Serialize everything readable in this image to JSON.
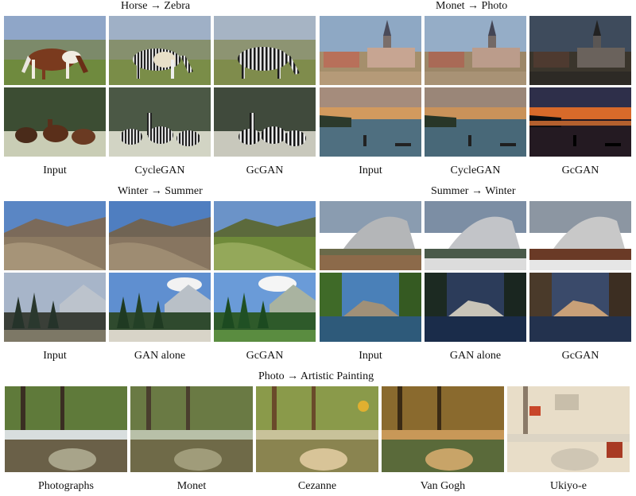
{
  "sections": {
    "horse_zebra": {
      "title": "Horse → Zebra",
      "captions": [
        "Input",
        "CycleGAN",
        "GcGAN"
      ]
    },
    "monet_photo": {
      "title": "Monet → Photo",
      "captions": [
        "Input",
        "CycleGAN",
        "GcGAN"
      ]
    },
    "winter_summer": {
      "title": "Winter → Summer",
      "captions": [
        "Input",
        "GAN alone",
        "GcGAN"
      ]
    },
    "summer_winter": {
      "title": "Summer → Winter",
      "captions": [
        "Input",
        "GAN alone",
        "GcGAN"
      ]
    },
    "photo_art": {
      "title": "Photo → Artistic Painting",
      "captions": [
        "Photographs",
        "Monet",
        "Cezanne",
        "Van Gogh",
        "Ukiyo-e"
      ]
    }
  }
}
